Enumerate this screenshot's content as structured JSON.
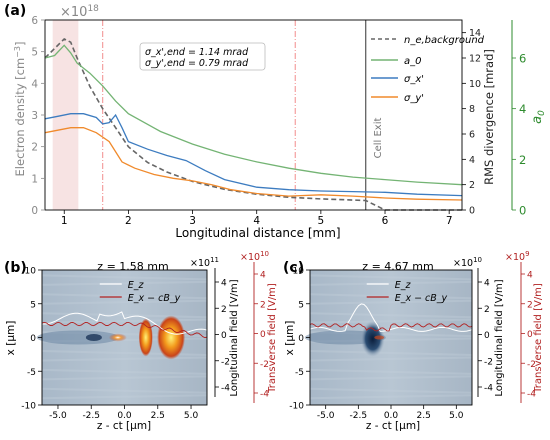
{
  "panel_a": {
    "label": "(a)",
    "exponent": "×10",
    "exponent_power": "18",
    "ylabel_left": "Electron density [cm",
    "ylabel_left_exp": "−3",
    "ylabel_left_end": "]",
    "ylabel_mid": "RMS divergence [mrad]",
    "ylabel_right": "a",
    "ylabel_right_sub": "0",
    "xlabel": "Longitudinal distance [mm]",
    "cell_exit": "Cell Exit",
    "annotation_1": "σ_x',end = 1.14 mrad",
    "annotation_2": "σ_y',end = 0.79 mrad",
    "legend": [
      {
        "label": "n_e,background",
        "color": "#666666"
      },
      {
        "label": "a_0",
        "color": "#74b474"
      },
      {
        "label": "σ_x'",
        "color": "#3d7cc0"
      },
      {
        "label": "σ_y'",
        "color": "#f08a2c"
      }
    ],
    "colors": {
      "density": "#666666",
      "a0": "#74b474",
      "sx": "#3d7cc0",
      "sy": "#f08a2c",
      "right_axis": "#2e8b2e",
      "mid_axis": "#333333",
      "left_axis": "#888888"
    }
  },
  "panel_b": {
    "label": "(b)",
    "title": "z = 1.58 mm",
    "exp_left": "×10",
    "exp_left_power": "11",
    "exp_right": "×10",
    "exp_right_power": "10",
    "ylabel": "x [μm]",
    "xlabel": "z - ct [μm]",
    "ylabel_long": "Longitudinal field [V/m]",
    "ylabel_trans": "Transverse field [V/m]",
    "legend": [
      {
        "label": "E_z",
        "color": "#ffffff"
      },
      {
        "label": "E_x − cB_y",
        "color": "#b22222"
      }
    ]
  },
  "panel_c": {
    "label": "(c)",
    "title": "z = 4.67 mm",
    "exp_left": "×10",
    "exp_left_power": "10",
    "exp_right": "×10",
    "exp_right_power": "9",
    "ylabel": "x [μm]",
    "xlabel": "z - ct [μm]",
    "ylabel_long": "Longitudinal field [V/m]",
    "ylabel_trans": "Transverse field [V/m]",
    "legend": [
      {
        "label": "E_z",
        "color": "#ffffff"
      },
      {
        "label": "E_x − cB_y",
        "color": "#b22222"
      }
    ]
  },
  "chart_data": [
    {
      "type": "line",
      "xlabel": "Longitudinal distance [mm]",
      "xlim": [
        0.7,
        7.2
      ],
      "xticks": [
        "1",
        "2",
        "3",
        "4",
        "5",
        "6",
        "7"
      ],
      "yaxes": [
        {
          "label": "Electron density [cm^-3] ×10^18",
          "ylim": [
            0,
            6
          ],
          "ticks": [
            "0",
            "1",
            "2",
            "3",
            "4",
            "5",
            "6"
          ]
        },
        {
          "label": "RMS divergence [mrad]",
          "ylim": [
            0,
            15
          ],
          "ticks": [
            "0",
            "2",
            "4",
            "6",
            "8",
            "10",
            "12",
            "14"
          ]
        },
        {
          "label": "a_0",
          "ylim": [
            0,
            7.5
          ],
          "ticks": [
            "0",
            "2",
            "4",
            "6"
          ]
        }
      ],
      "vlines": [
        1.6,
        4.6
      ],
      "cell_exit_x": 5.7,
      "series": [
        {
          "name": "n_e,background",
          "x": [
            0.7,
            0.85,
            1.0,
            1.1,
            1.2,
            1.4,
            1.6,
            1.8,
            2.0,
            2.3,
            2.6,
            3.0,
            3.5,
            4.0,
            4.5,
            5.0,
            5.7,
            6.0,
            7.2
          ],
          "y": [
            4.8,
            5.1,
            5.4,
            5.3,
            4.8,
            3.9,
            3.2,
            2.6,
            2.0,
            1.5,
            1.2,
            0.9,
            0.65,
            0.5,
            0.4,
            0.35,
            0.3,
            0.0,
            0.0
          ]
        },
        {
          "name": "a_0",
          "x": [
            0.7,
            0.85,
            1.0,
            1.1,
            1.2,
            1.4,
            1.6,
            1.8,
            2.0,
            2.5,
            3.0,
            3.5,
            4.0,
            4.5,
            5.0,
            5.5,
            6.0,
            6.5,
            7.2
          ],
          "y": [
            6.0,
            6.1,
            6.5,
            6.2,
            5.8,
            5.4,
            4.9,
            4.3,
            3.8,
            3.1,
            2.6,
            2.2,
            1.9,
            1.65,
            1.45,
            1.3,
            1.2,
            1.1,
            1.0
          ]
        },
        {
          "name": "σ_x'",
          "x": [
            0.7,
            0.9,
            1.1,
            1.3,
            1.5,
            1.6,
            1.7,
            1.8,
            1.9,
            2.0,
            2.3,
            2.6,
            2.9,
            3.2,
            3.5,
            4.0,
            4.5,
            5.0,
            5.5,
            6.0,
            6.5,
            7.2
          ],
          "y": [
            7.2,
            7.4,
            7.6,
            7.6,
            7.3,
            6.8,
            6.9,
            7.5,
            6.5,
            5.4,
            4.8,
            4.3,
            3.9,
            3.1,
            2.4,
            1.8,
            1.6,
            1.5,
            1.45,
            1.4,
            1.25,
            1.14
          ]
        },
        {
          "name": "σ_y'",
          "x": [
            0.7,
            0.9,
            1.1,
            1.3,
            1.5,
            1.7,
            1.9,
            2.1,
            2.4,
            2.7,
            3.0,
            3.3,
            3.6,
            4.0,
            4.5,
            5.0,
            5.5,
            6.0,
            6.5,
            7.2
          ],
          "y": [
            6.1,
            6.3,
            6.5,
            6.5,
            6.1,
            5.4,
            3.8,
            3.3,
            2.8,
            2.5,
            2.3,
            2.0,
            1.6,
            1.3,
            1.1,
            1.2,
            1.1,
            0.95,
            0.85,
            0.79
          ]
        }
      ]
    },
    {
      "type": "heatmap",
      "title": "z = 1.58 mm",
      "xlabel": "z - ct [μm]",
      "ylabel": "x [μm]",
      "xlim": [
        -6.2,
        6.2
      ],
      "ylim": [
        -10,
        10
      ],
      "xticks": [
        "-5.0",
        "-2.5",
        "0.0",
        "2.5",
        "5.0"
      ],
      "yticks": [
        "-10",
        "-5",
        "0",
        "5",
        "10"
      ],
      "long_ticks": [
        "-4",
        "-2",
        "0",
        "2",
        "4"
      ],
      "trans_ticks": [
        "-4",
        "-2",
        "0",
        "2",
        "4"
      ],
      "series": [
        {
          "name": "E_z"
        },
        {
          "name": "E_x − cB_y"
        }
      ]
    },
    {
      "type": "heatmap",
      "title": "z = 4.67 mm",
      "xlabel": "z - ct [μm]",
      "ylabel": "x [μm]",
      "xlim": [
        -6.2,
        6.2
      ],
      "ylim": [
        -10,
        10
      ],
      "xticks": [
        "-5.0",
        "-2.5",
        "0.0",
        "2.5",
        "5.0"
      ],
      "yticks": [
        "-10",
        "-5",
        "0",
        "5",
        "10"
      ],
      "long_ticks": [
        "-4",
        "-2",
        "0",
        "2",
        "4"
      ],
      "trans_ticks": [
        "-4",
        "-2",
        "0",
        "2",
        "4"
      ],
      "series": [
        {
          "name": "E_z"
        },
        {
          "name": "E_x − cB_y"
        }
      ]
    }
  ]
}
